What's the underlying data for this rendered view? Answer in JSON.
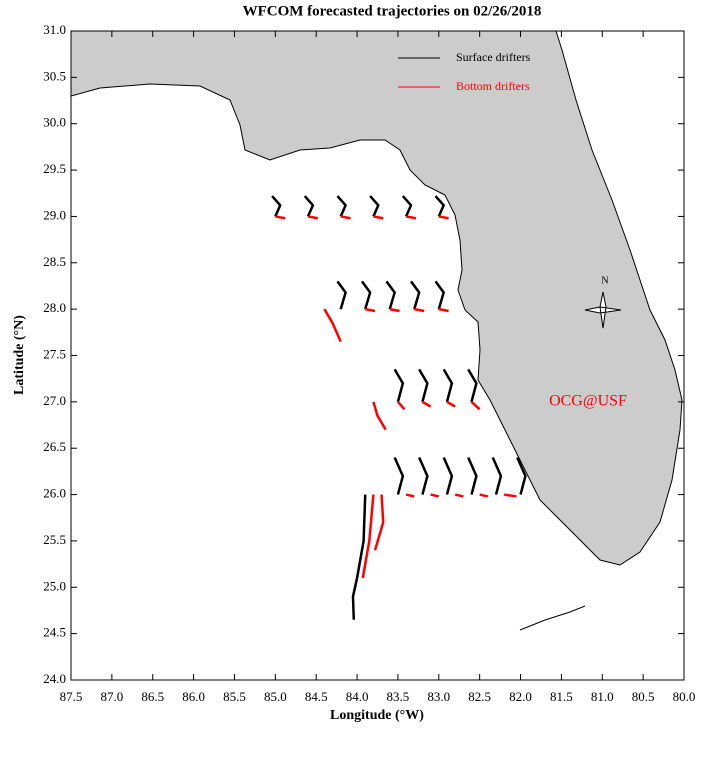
{
  "chart_data": {
    "type": "line",
    "title": "WFCOM forecasted trajectories on 02/26/2018",
    "x_label": "Longitude (°W)",
    "y_label": "Latitude (°N)",
    "annotation": "OCG@USF",
    "compass_label": "N",
    "xlim": [
      87.5,
      80.0
    ],
    "ylim": [
      24.0,
      31.0
    ],
    "xticks": [
      87.5,
      {
        "value": 87,
        "label": "87.0"
      },
      86.5,
      {
        "value": 86,
        "label": "86.0"
      },
      85.5,
      {
        "value": 85,
        "label": "85.0"
      },
      84.5,
      {
        "value": 84,
        "label": "84.0"
      },
      83.5,
      {
        "value": 83,
        "label": "83.0"
      },
      82.5,
      {
        "value": 82,
        "label": "82.0"
      },
      81.5,
      {
        "value": 81,
        "label": "81.0"
      },
      80.5,
      {
        "value": 80,
        "label": "80.0"
      }
    ],
    "yticks": [
      {
        "value": 24,
        "label": "24.0"
      },
      24.5,
      {
        "value": 25,
        "label": "25.0"
      },
      25.5,
      {
        "value": 26,
        "label": "26.0"
      },
      26.5,
      {
        "value": 27,
        "label": "27.0"
      },
      27.5,
      {
        "value": 28,
        "label": "28.0"
      },
      28.5,
      {
        "value": 29,
        "label": "29.0"
      },
      29.5,
      {
        "value": 30,
        "label": "30.0"
      },
      30.5,
      {
        "value": 31,
        "label": "31.0"
      }
    ],
    "series": [
      {
        "name": "Surface drifters",
        "color": "#000000",
        "x": [
          85.0,
          84.94,
          85.04,
          null,
          84.6,
          84.54,
          84.64,
          null,
          84.2,
          84.14,
          84.24,
          null,
          83.8,
          83.74,
          83.84,
          null,
          83.4,
          83.34,
          83.44,
          null,
          83.0,
          82.94,
          83.04,
          null,
          84.2,
          84.14,
          84.24,
          null,
          83.9,
          83.84,
          83.94,
          null,
          83.6,
          83.54,
          83.64,
          null,
          83.3,
          83.24,
          83.34,
          null,
          83.0,
          82.94,
          83.04,
          null,
          83.5,
          83.44,
          83.54,
          null,
          83.2,
          83.14,
          83.24,
          null,
          82.9,
          82.84,
          82.94,
          null,
          82.6,
          82.54,
          82.64,
          null,
          83.5,
          83.44,
          83.54,
          null,
          83.2,
          83.14,
          83.24,
          null,
          82.9,
          82.84,
          82.94,
          null,
          82.6,
          82.54,
          82.64,
          null,
          82.3,
          82.24,
          82.34,
          null,
          82.0,
          81.94,
          82.04,
          null,
          83.9,
          83.92,
          84.0,
          84.05,
          84.04
        ],
        "values": [
          29.0,
          29.12,
          29.22,
          null,
          29.0,
          29.12,
          29.22,
          null,
          29.0,
          29.12,
          29.22,
          null,
          29.0,
          29.12,
          29.22,
          null,
          29.0,
          29.12,
          29.22,
          null,
          29.0,
          29.12,
          29.22,
          null,
          28.0,
          28.18,
          28.3,
          null,
          28.0,
          28.18,
          28.3,
          null,
          28.0,
          28.18,
          28.3,
          null,
          28.0,
          28.18,
          28.3,
          null,
          28.0,
          28.18,
          28.3,
          null,
          27.0,
          27.2,
          27.35,
          null,
          27.0,
          27.2,
          27.35,
          null,
          27.0,
          27.2,
          27.35,
          null,
          27.0,
          27.2,
          27.35,
          null,
          26.0,
          26.2,
          26.4,
          null,
          26.0,
          26.2,
          26.4,
          null,
          26.0,
          26.2,
          26.4,
          null,
          26.0,
          26.2,
          26.4,
          null,
          26.0,
          26.2,
          26.4,
          null,
          26.0,
          26.2,
          26.4,
          null,
          26.0,
          25.5,
          25.1,
          24.9,
          24.65
        ]
      },
      {
        "name": "Bottom drifters",
        "color": "#ff0000",
        "x": [
          85.0,
          84.88,
          null,
          84.6,
          84.48,
          null,
          84.2,
          84.08,
          null,
          83.8,
          83.68,
          null,
          83.4,
          83.28,
          null,
          83.0,
          82.88,
          null,
          84.4,
          84.3,
          84.2,
          null,
          83.9,
          83.78,
          null,
          83.6,
          83.48,
          null,
          83.3,
          83.18,
          null,
          83.0,
          82.88,
          null,
          83.8,
          83.75,
          83.65,
          null,
          83.5,
          83.42,
          null,
          83.2,
          83.1,
          null,
          82.9,
          82.8,
          null,
          82.6,
          82.5,
          null,
          83.8,
          83.85,
          83.93,
          null,
          83.7,
          83.68,
          83.78,
          null,
          83.4,
          83.3,
          null,
          83.1,
          83.0,
          null,
          82.8,
          82.7,
          null,
          82.5,
          82.4,
          null,
          82.2,
          82.05
        ],
        "values": [
          29.0,
          28.98,
          null,
          29.0,
          28.98,
          null,
          29.0,
          28.98,
          null,
          29.0,
          28.98,
          null,
          29.0,
          28.98,
          null,
          29.0,
          28.98,
          null,
          28.0,
          27.85,
          27.65,
          null,
          28.0,
          27.98,
          null,
          28.0,
          27.98,
          null,
          28.0,
          27.98,
          null,
          28.0,
          27.98,
          null,
          27.0,
          26.85,
          26.7,
          null,
          27.0,
          26.92,
          null,
          27.0,
          26.95,
          null,
          27.0,
          26.95,
          null,
          27.0,
          26.92,
          null,
          26.0,
          25.5,
          25.1,
          null,
          26.0,
          25.7,
          25.4,
          null,
          26.0,
          25.98,
          null,
          26.0,
          25.98,
          null,
          26.0,
          25.98,
          null,
          26.0,
          25.98,
          null,
          26.0,
          25.98
        ]
      }
    ]
  }
}
